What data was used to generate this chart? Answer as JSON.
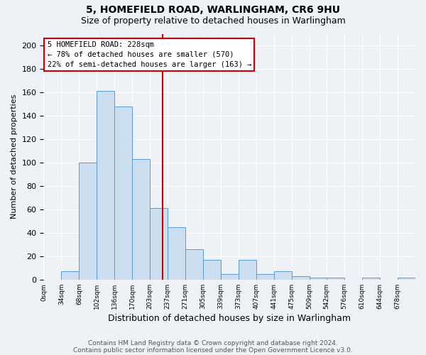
{
  "title1": "5, HOMEFIELD ROAD, WARLINGHAM, CR6 9HU",
  "title2": "Size of property relative to detached houses in Warlingham",
  "xlabel": "Distribution of detached houses by size in Warlingham",
  "ylabel": "Number of detached properties",
  "bin_labels": [
    "0sqm",
    "34sqm",
    "68sqm",
    "102sqm",
    "136sqm",
    "170sqm",
    "203sqm",
    "237sqm",
    "271sqm",
    "305sqm",
    "339sqm",
    "373sqm",
    "407sqm",
    "441sqm",
    "475sqm",
    "509sqm",
    "542sqm",
    "576sqm",
    "610sqm",
    "644sqm",
    "678sqm"
  ],
  "bin_edges": [
    0,
    34,
    68,
    102,
    136,
    170,
    203,
    237,
    271,
    305,
    339,
    373,
    407,
    441,
    475,
    509,
    542,
    576,
    610,
    644,
    678
  ],
  "bar_heights": [
    0,
    7,
    100,
    161,
    148,
    103,
    61,
    45,
    26,
    17,
    5,
    17,
    5,
    7,
    3,
    2,
    2,
    0,
    2,
    0,
    2
  ],
  "bar_color": "#ccdff0",
  "bar_edge_color": "#5b9bd5",
  "property_size": 228,
  "red_line_color": "#cc0000",
  "annotation_text1": "5 HOMEFIELD ROAD: 228sqm",
  "annotation_text2": "← 78% of detached houses are smaller (570)",
  "annotation_text3": "22% of semi-detached houses are larger (163) →",
  "annotation_box_color": "#ffffff",
  "annotation_border_color": "#cc0000",
  "ylim": [
    0,
    210
  ],
  "yticks": [
    0,
    20,
    40,
    60,
    80,
    100,
    120,
    140,
    160,
    180,
    200
  ],
  "footer1": "Contains HM Land Registry data © Crown copyright and database right 2024.",
  "footer2": "Contains public sector information licensed under the Open Government Licence v3.0.",
  "bg_color": "#eef2f7",
  "grid_color": "#ffffff",
  "bin_width": 34,
  "x_max": 712
}
